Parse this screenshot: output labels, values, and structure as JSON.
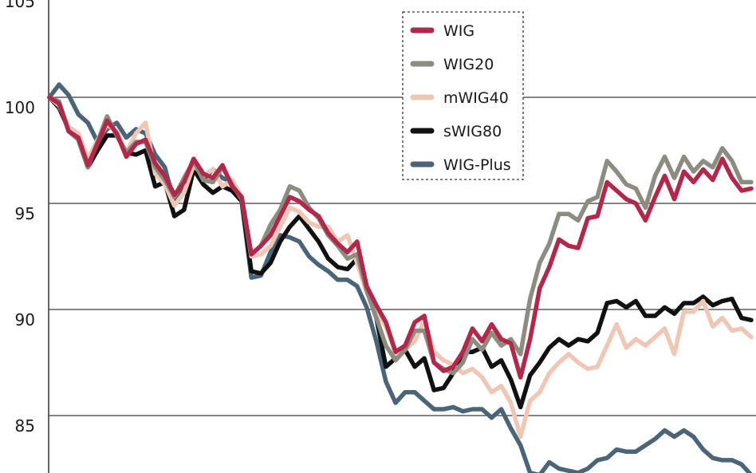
{
  "chart_data": {
    "type": "line",
    "title": "",
    "xlabel": "",
    "ylabel": "",
    "ylim": [
      83,
      105
    ],
    "yticks": [
      85,
      90,
      95,
      100,
      105
    ],
    "grid": "horizontal",
    "legend_position": "top-right",
    "series": [
      {
        "name": "WIG",
        "color": "#b3284a",
        "values": [
          100.0,
          99.7,
          98.4,
          98.1,
          96.8,
          97.8,
          98.9,
          98.3,
          97.2,
          97.8,
          98.0,
          96.9,
          96.3,
          95.4,
          96.0,
          97.1,
          96.4,
          96.2,
          96.8,
          95.8,
          95.3,
          92.6,
          93.0,
          93.5,
          94.4,
          95.3,
          95.1,
          94.7,
          94.4,
          93.6,
          93.1,
          92.7,
          93.2,
          91.1,
          90.2,
          89.4,
          88.0,
          88.3,
          89.4,
          89.7,
          87.5,
          87.1,
          87.3,
          88.0,
          89.1,
          88.5,
          89.3,
          88.6,
          88.4,
          86.8,
          88.6,
          91.0,
          92.0,
          93.3,
          93.0,
          92.9,
          94.3,
          94.4,
          96.0,
          95.6,
          95.2,
          95.0,
          94.2,
          95.3,
          96.3,
          95.2,
          96.5,
          96.0,
          96.6,
          96.1,
          97.1,
          96.2,
          95.6,
          95.7
        ]
      },
      {
        "name": "WIG20",
        "color": "#8c8c80",
        "values": [
          100.0,
          99.8,
          98.4,
          98.0,
          96.7,
          97.9,
          99.1,
          98.2,
          97.4,
          97.9,
          97.9,
          96.7,
          96.1,
          95.3,
          96.2,
          97.0,
          96.1,
          96.0,
          96.7,
          95.9,
          95.2,
          92.6,
          93.0,
          94.0,
          94.7,
          95.8,
          95.6,
          94.8,
          94.3,
          93.5,
          93.0,
          92.4,
          92.6,
          90.9,
          89.6,
          88.3,
          87.6,
          88.1,
          89.0,
          89.0,
          87.5,
          87.2,
          87.0,
          87.5,
          88.6,
          88.1,
          88.9,
          88.3,
          88.6,
          87.9,
          90.5,
          92.2,
          93.1,
          94.5,
          94.5,
          94.2,
          95.1,
          95.3,
          97.0,
          96.5,
          95.9,
          95.7,
          94.8,
          96.3,
          97.2,
          96.2,
          97.2,
          96.5,
          97.0,
          96.7,
          97.6,
          97.0,
          96.0,
          96.0
        ]
      },
      {
        "name": "mWIG40",
        "color": "#f0c7b4",
        "values": [
          100.0,
          99.6,
          98.6,
          98.3,
          97.1,
          98.0,
          98.7,
          98.4,
          97.4,
          98.3,
          98.8,
          96.4,
          95.9,
          94.9,
          95.5,
          96.8,
          96.3,
          96.6,
          95.8,
          96.1,
          95.3,
          92.5,
          92.6,
          93.0,
          93.9,
          94.8,
          94.6,
          94.1,
          93.9,
          93.9,
          93.2,
          93.5,
          92.2,
          90.8,
          89.9,
          89.2,
          87.9,
          88.1,
          88.5,
          89.5,
          88.0,
          87.6,
          87.4,
          87.0,
          87.2,
          86.8,
          86.1,
          86.4,
          85.6,
          84.0,
          85.7,
          86.1,
          87.0,
          87.5,
          87.9,
          87.5,
          87.2,
          87.3,
          88.3,
          89.3,
          88.2,
          88.6,
          88.3,
          88.7,
          89.1,
          87.9,
          89.9,
          89.9,
          90.4,
          89.2,
          89.6,
          89.0,
          89.1,
          88.7
        ]
      },
      {
        "name": "sWIG80",
        "color": "#111111",
        "values": [
          100.0,
          99.5,
          98.5,
          98.0,
          96.7,
          97.5,
          98.2,
          98.2,
          97.4,
          97.3,
          97.5,
          95.8,
          96.0,
          94.4,
          94.7,
          96.6,
          95.9,
          95.5,
          95.8,
          95.6,
          95.1,
          91.8,
          91.7,
          92.2,
          93.2,
          93.9,
          94.4,
          93.8,
          93.2,
          92.4,
          92.0,
          91.9,
          92.4,
          90.9,
          89.6,
          87.3,
          87.7,
          88.1,
          87.3,
          87.7,
          86.2,
          86.3,
          87.0,
          88.0,
          88.0,
          88.2,
          87.3,
          87.6,
          86.7,
          85.4,
          86.9,
          87.5,
          88.2,
          88.6,
          88.3,
          88.6,
          88.5,
          88.9,
          90.3,
          90.4,
          90.1,
          90.4,
          89.7,
          89.7,
          90.1,
          89.8,
          90.3,
          90.3,
          90.6,
          90.2,
          90.4,
          90.5,
          89.6,
          89.5
        ]
      },
      {
        "name": "WIG-Plus",
        "color": "#4a6577",
        "values": [
          100.0,
          100.6,
          100.1,
          99.2,
          98.8,
          97.9,
          98.5,
          98.8,
          98.1,
          98.5,
          98.3,
          97.3,
          96.7,
          95.0,
          95.8,
          96.8,
          96.1,
          96.6,
          96.2,
          96.0,
          95.1,
          91.5,
          91.6,
          92.7,
          93.5,
          93.4,
          93.2,
          92.5,
          92.1,
          91.8,
          91.4,
          91.4,
          91.1,
          90.1,
          88.5,
          86.6,
          85.6,
          86.1,
          86.1,
          85.7,
          85.3,
          85.3,
          85.4,
          85.2,
          85.3,
          85.3,
          84.9,
          85.3,
          84.4,
          83.6,
          82.3,
          82.2,
          82.8,
          82.5,
          82.4,
          82.3,
          82.5,
          82.9,
          83.0,
          83.4,
          83.3,
          83.3,
          83.6,
          83.9,
          84.3,
          84.0,
          84.3,
          84.0,
          83.4,
          83.0,
          82.9,
          82.9,
          82.7,
          82.2
        ]
      }
    ]
  }
}
